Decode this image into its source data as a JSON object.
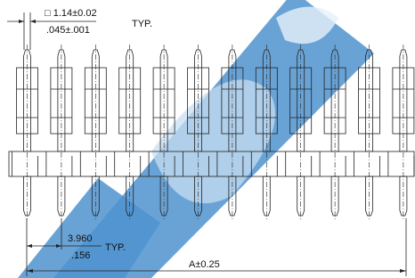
{
  "dimensions": {
    "pin_size_mm": "□ 1.14±0.02",
    "pin_size_in": ".045±.001",
    "pin_size_note": "TYP.",
    "pitch_mm": "3.960",
    "pitch_in": ".156",
    "pitch_note": "TYP.",
    "overall": "A±0.25"
  }
}
